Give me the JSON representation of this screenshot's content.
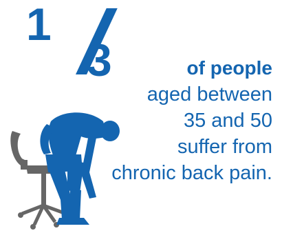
{
  "stat": {
    "numerator": "1",
    "denominator": "3",
    "line1": "of people",
    "line2": "aged between",
    "line3": "35 and 50",
    "line4": "suffer from",
    "line5": "chronic back pain."
  },
  "colors": {
    "accent": "#1465b0",
    "chair": "#666666",
    "background": "#ffffff"
  },
  "icons": {
    "person": "person-back-pain-icon",
    "chair": "office-chair-icon"
  }
}
